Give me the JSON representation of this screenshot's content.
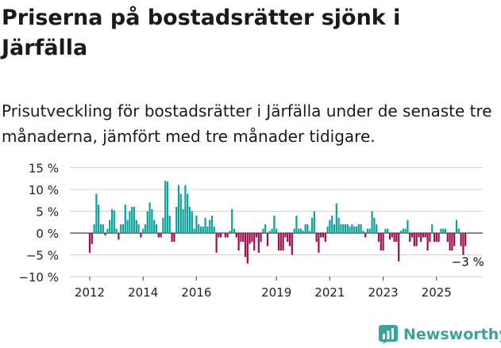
{
  "header": {
    "title": "Priserna på bostadsrätter sjönk i Järfälla",
    "subtitle": "Prisutveckling för bostadsrätter i Järfälla under de senaste tre månaderna, jämfört med tre månader tidigare."
  },
  "brand": {
    "name": "Newsworthy",
    "color": "#3aa596",
    "icon": "newsworthy-chart-icon"
  },
  "chart_data": {
    "type": "bar",
    "title": "Priserna på bostadsrätter sjönk i Järfälla",
    "subtitle": "Prisutveckling för bostadsrätter i Järfälla under de senaste tre månaderna, jämfört med tre månader tidigare.",
    "x_unit": "month",
    "x_start": "2012-01",
    "x_end": "2025-07",
    "x_ticks": [
      "2012",
      "2014",
      "2016",
      "2019",
      "2021",
      "2023",
      "2025"
    ],
    "y_ticks": [
      "15 %",
      "10 %",
      "5 %",
      "0 %",
      "−5 %",
      "−10 %"
    ],
    "ylim": [
      -10,
      15
    ],
    "grid": true,
    "colors": {
      "positive": "#0aa39b",
      "negative": "#9b0d4e"
    },
    "annotation": {
      "text": "−3 %",
      "target": "last"
    },
    "values": [
      -4.5,
      -2.5,
      2,
      9,
      6.5,
      2,
      2,
      -0.5,
      1,
      3,
      5.5,
      5.2,
      1,
      -1.5,
      2,
      2,
      6.5,
      3,
      5,
      6,
      6,
      3,
      2,
      -1,
      1,
      2,
      5,
      7,
      5.5,
      3,
      2,
      -1,
      -1,
      3.5,
      12,
      11.8,
      4,
      -2,
      -2,
      6,
      11,
      9,
      5.5,
      11,
      9,
      6,
      5,
      1,
      4,
      2,
      1.5,
      1.5,
      3.5,
      1.5,
      3,
      4,
      1.5,
      -4.5,
      -1,
      -1,
      0,
      -1,
      -1,
      0.5,
      5.5,
      1,
      -1,
      -4,
      -2,
      -2,
      -5.5,
      -7,
      -2.5,
      -2,
      -4,
      -1,
      -4.5,
      -2,
      1,
      2,
      -3,
      0.5,
      1,
      4,
      1,
      -4,
      -4,
      -4,
      -1,
      -2,
      -3,
      -5,
      1,
      4,
      1,
      1,
      0.5,
      2,
      2,
      0.5,
      3.5,
      5,
      -2,
      -4.5,
      -1,
      -1,
      -2,
      1.5,
      3,
      4,
      2,
      6.8,
      3.5,
      2,
      2,
      2,
      2,
      1.5,
      2,
      1.5,
      1.5,
      2,
      2,
      0.5,
      -1,
      1,
      1,
      5,
      3.5,
      2,
      -2,
      -4,
      -4,
      1,
      1,
      -1.5,
      -1,
      -2,
      -2,
      -6.5,
      0.5,
      1,
      1,
      3,
      -2,
      -1,
      -3,
      -3,
      -1,
      -2,
      -1,
      -1,
      -4,
      -2,
      2,
      -2,
      -2,
      -2,
      1,
      1,
      1,
      -2,
      -4,
      -4,
      -3,
      3,
      1,
      -3,
      -5,
      -3
    ]
  }
}
